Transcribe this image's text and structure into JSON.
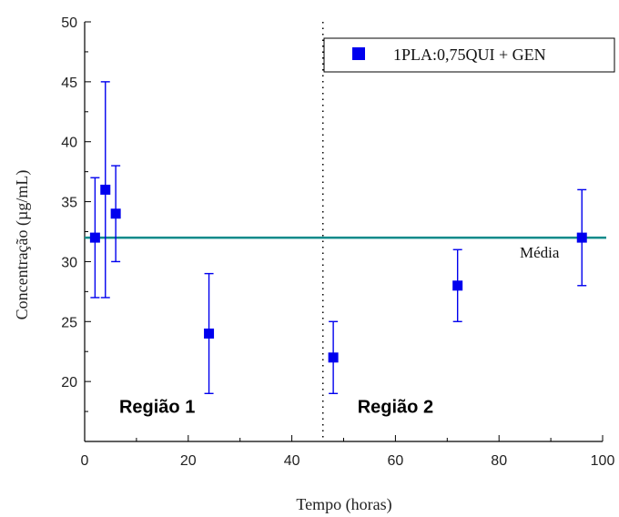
{
  "chart_data": {
    "type": "scatter",
    "xlabel": "Tempo (horas)",
    "ylabel": "Concentração (µg/mL)",
    "xlim": [
      0,
      100
    ],
    "ylim": [
      15,
      50
    ],
    "x_ticks": [
      0,
      20,
      40,
      60,
      80,
      100
    ],
    "y_ticks": [
      20,
      25,
      30,
      35,
      40,
      45,
      50
    ],
    "grid": false,
    "legend_position": "top-right",
    "series": [
      {
        "name": "1PLA:0,75QUI + GEN",
        "color": "#0000ee",
        "marker": "square",
        "points": [
          {
            "x": 2,
            "y": 32,
            "err_low": 27,
            "err_high": 37
          },
          {
            "x": 4,
            "y": 36,
            "err_low": 27,
            "err_high": 45
          },
          {
            "x": 6,
            "y": 34,
            "err_low": 30,
            "err_high": 38
          },
          {
            "x": 24,
            "y": 24,
            "err_low": 19,
            "err_high": 29
          },
          {
            "x": 48,
            "y": 22,
            "err_low": 19,
            "err_high": 25
          },
          {
            "x": 72,
            "y": 28,
            "err_low": 25,
            "err_high": 31
          },
          {
            "x": 96,
            "y": 32,
            "err_low": 28,
            "err_high": 36
          }
        ]
      }
    ],
    "mean_line": {
      "y": 32,
      "label": "Média",
      "color": "#0a8a8a"
    },
    "divider": {
      "x": 46
    },
    "regions": [
      {
        "label": "Região 1",
        "x": 14,
        "y": 17.4
      },
      {
        "label": "Região  2",
        "x": 60,
        "y": 17.4
      }
    ]
  }
}
